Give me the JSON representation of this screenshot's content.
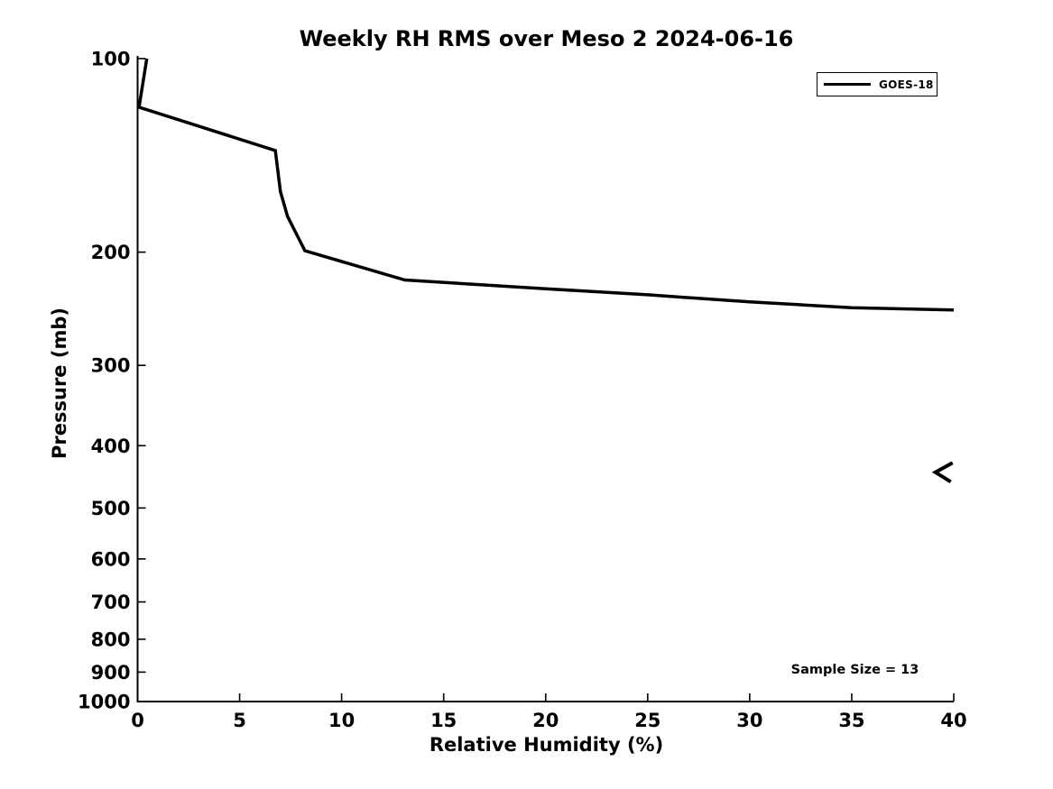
{
  "chart_data": {
    "type": "line",
    "title": "Weekly RH RMS over Meso 2 2024-06-16",
    "xlabel": "Relative Humidity (%)",
    "ylabel": "Pressure (mb)",
    "xlim": [
      0,
      40
    ],
    "ylim": [
      1000,
      100
    ],
    "yscale": "log",
    "xticks": [
      0,
      5,
      10,
      15,
      20,
      25,
      30,
      35,
      40
    ],
    "yticks": [
      100,
      200,
      300,
      400,
      500,
      600,
      700,
      800,
      900,
      1000
    ],
    "grid": false,
    "legend_position": "upper-right",
    "line_color": "#000000",
    "series": [
      {
        "name": "GOES-18",
        "color": "#000000",
        "points_rh_pressure": [
          [
            0.45,
            100
          ],
          [
            0.07,
            119
          ],
          [
            6.75,
            139
          ],
          [
            7.0,
            161
          ],
          [
            7.35,
            176
          ],
          [
            8.2,
            199
          ],
          [
            13.1,
            221
          ],
          [
            20,
            228
          ],
          [
            25,
            233
          ],
          [
            30,
            239
          ],
          [
            35,
            244
          ],
          [
            40,
            246
          ]
        ]
      }
    ],
    "offscale_marker": {
      "symbol": "<",
      "rh": 39.5,
      "pressure": 440
    },
    "annotation": "Sample Size = 13",
    "sample_size": 13
  }
}
